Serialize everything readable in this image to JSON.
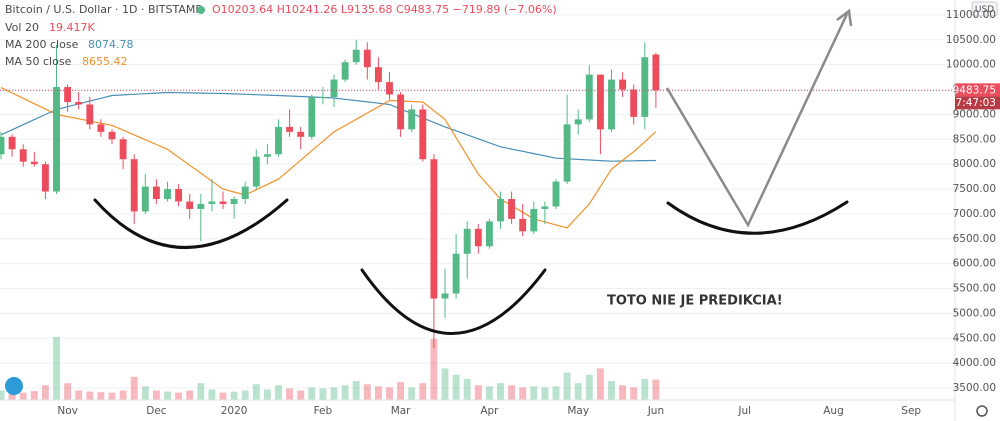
{
  "header": {
    "symbol": "Bitcoin / U.S. Dollar · 1D · BITSTAMP",
    "ohlc": "O10203.64 H10241.26 L9135.68 C9483.75 −719.89 (−7.06%)",
    "countdown": "07:47:03",
    "currency": "USD"
  },
  "chart_data": {
    "type": "candlestick",
    "annotation": "TOTO NIE JE PREDIKCIA!",
    "categories": [
      null,
      null,
      null,
      null,
      null,
      null,
      "Nov",
      null,
      null,
      null,
      null,
      null,
      null,
      null,
      "Dec",
      null,
      null,
      null,
      null,
      null,
      null,
      "2020",
      null,
      null,
      null,
      null,
      null,
      null,
      null,
      "Feb",
      null,
      null,
      null,
      null,
      null,
      null,
      "Mar",
      null,
      null,
      null,
      null,
      null,
      null,
      null,
      "Apr",
      null,
      null,
      null,
      null,
      null,
      null,
      null,
      "May",
      null,
      null,
      null,
      null,
      null,
      null,
      "Jun",
      null,
      null,
      null,
      null,
      null,
      null,
      null,
      "Jul",
      null,
      null,
      null,
      null,
      null,
      null,
      null,
      "Aug",
      null,
      null,
      null,
      null,
      null,
      null,
      "Sep",
      null,
      null,
      null
    ],
    "open": [
      8200,
      8550,
      8300,
      8050,
      8000,
      7450,
      9550,
      9250,
      9200,
      8800,
      8650,
      8500,
      8100,
      7050,
      7550,
      7300,
      7500,
      7250,
      7100,
      7200,
      7250,
      7200,
      7300,
      7550,
      8150,
      8200,
      8750,
      8650,
      8550,
      9350,
      9350,
      9700,
      10050,
      10300,
      9950,
      9650,
      9400,
      8700,
      9100,
      8100,
      5300,
      5400,
      6200,
      6700,
      6350,
      6850,
      7300,
      6900,
      6650,
      7100,
      7150,
      7650,
      8800,
      8900,
      9800,
      8700,
      9700,
      9500,
      8950,
      10203.64,
      null,
      null,
      null,
      null,
      null,
      null,
      null,
      null,
      null,
      null,
      null,
      null,
      null,
      null,
      null,
      null,
      null,
      null,
      null,
      null,
      null,
      null,
      null,
      null,
      null,
      null
    ],
    "high": [
      8650,
      8600,
      8400,
      8250,
      8050,
      10400,
      9600,
      9450,
      9350,
      8900,
      8700,
      8550,
      8200,
      7800,
      7700,
      7650,
      7600,
      7400,
      7400,
      7700,
      7450,
      7350,
      7650,
      8300,
      8400,
      8900,
      9100,
      8750,
      9400,
      9550,
      9800,
      10100,
      10500,
      10450,
      10150,
      9850,
      9450,
      9200,
      9200,
      8200,
      5900,
      6600,
      6850,
      6800,
      6900,
      7450,
      7450,
      7200,
      7250,
      7250,
      7700,
      9400,
      9100,
      10000,
      9800,
      9900,
      9850,
      9600,
      10450,
      10241.26,
      null,
      null,
      null,
      null,
      null,
      null,
      null,
      null,
      null,
      null,
      null,
      null,
      null,
      null,
      null,
      null,
      null,
      null,
      null,
      null,
      null,
      null,
      null,
      null,
      null,
      null
    ],
    "low": [
      8100,
      8150,
      7950,
      7950,
      7300,
      7400,
      9050,
      9100,
      8700,
      8550,
      8400,
      7900,
      6800,
      7000,
      7200,
      7250,
      7150,
      6900,
      6450,
      7050,
      7100,
      6900,
      7200,
      7500,
      8000,
      8150,
      8550,
      8300,
      8500,
      9200,
      9150,
      9650,
      10000,
      9700,
      9500,
      9300,
      8550,
      8650,
      8050,
      4300,
      4900,
      5300,
      5700,
      6200,
      6300,
      6700,
      6800,
      6550,
      6600,
      6800,
      7100,
      7600,
      8600,
      8850,
      8200,
      8650,
      9350,
      8800,
      8700,
      9135.68,
      null,
      null,
      null,
      null,
      null,
      null,
      null,
      null,
      null,
      null,
      null,
      null,
      null,
      null,
      null,
      null,
      null,
      null,
      null,
      null,
      null,
      null,
      null,
      null,
      null,
      null
    ],
    "close": [
      8550,
      8300,
      8050,
      8000,
      7450,
      9550,
      9250,
      9200,
      8800,
      8650,
      8500,
      8100,
      7050,
      7550,
      7300,
      7500,
      7250,
      7100,
      7200,
      7250,
      7200,
      7300,
      7550,
      8150,
      8200,
      8750,
      8650,
      8550,
      9350,
      9350,
      9700,
      10050,
      10300,
      9950,
      9650,
      9400,
      8700,
      9100,
      8100,
      5300,
      5400,
      6200,
      6700,
      6350,
      6850,
      7300,
      6900,
      6650,
      7100,
      7150,
      7650,
      8800,
      8900,
      9800,
      8700,
      9700,
      9500,
      8950,
      10150,
      9483.75,
      null,
      null,
      null,
      null,
      null,
      null,
      null,
      null,
      null,
      null,
      null,
      null,
      null,
      null,
      null,
      null,
      null,
      null,
      null,
      null,
      null,
      null,
      null,
      null,
      null,
      null
    ],
    "up_color": "#53b987",
    "down_color": "#eb4d5c",
    "volume": {
      "name": "Vol 20",
      "last_label": "19.417K",
      "axis": "y2",
      "values": [
        9000,
        8000,
        7000,
        8500,
        14000,
        60000,
        16000,
        9000,
        8000,
        7500,
        7000,
        9000,
        22000,
        13000,
        9000,
        8000,
        7000,
        9000,
        16000,
        10000,
        7000,
        8000,
        9000,
        15000,
        10000,
        14000,
        11000,
        9000,
        12000,
        11000,
        12000,
        14000,
        18000,
        15000,
        13000,
        12000,
        17000,
        12000,
        16000,
        58000,
        30000,
        24000,
        20000,
        14000,
        13000,
        16000,
        14000,
        12000,
        13000,
        12000,
        13000,
        26000,
        16000,
        24000,
        30000,
        18000,
        14000,
        12000,
        20000,
        19417,
        null,
        null,
        null,
        null,
        null,
        null,
        null,
        null,
        null,
        null,
        null,
        null,
        null,
        null,
        null,
        null,
        null,
        null,
        null,
        null,
        null,
        null,
        null,
        null,
        null,
        null
      ]
    },
    "series": [
      {
        "name": "MA 200 close",
        "color": "#4a8fb5",
        "values": [
          8590,
          8692,
          8794,
          8896,
          8998,
          9100,
          9156,
          9212,
          9268,
          9324,
          9380,
          9392,
          9404,
          9416,
          9428,
          9440,
          9436,
          9432,
          9428,
          9424,
          9420,
          9412,
          9404,
          9396,
          9388,
          9380,
          9370,
          9360,
          9350,
          9340,
          9330,
          9304,
          9278,
          9252,
          9226,
          9200,
          9110,
          9020,
          8930,
          8840,
          8750,
          8670,
          8590,
          8510,
          8430,
          8350,
          8304,
          8258,
          8212,
          8166,
          8120,
          8108,
          8096,
          8084,
          8072,
          8060,
          8064,
          8068,
          8071,
          8074.78,
          null,
          null,
          null,
          null,
          null,
          null,
          null,
          null,
          null,
          null,
          null,
          null,
          null,
          null,
          null,
          null,
          null,
          null,
          null,
          null,
          null,
          null,
          null,
          null,
          null,
          null
        ]
      },
      {
        "name": "MA 50 close",
        "color": "#f0922b",
        "values": [
          9540,
          9432,
          9324,
          9216,
          9108,
          9000,
          8956,
          8912,
          8868,
          8824,
          8780,
          8684,
          8588,
          8492,
          8396,
          8300,
          8140,
          7980,
          7820,
          7660,
          7500,
          7440,
          7380,
          7487,
          7593,
          7700,
          7890,
          8080,
          8270,
          8460,
          8650,
          8776,
          8902,
          9028,
          9154,
          9280,
          9270,
          9260,
          9250,
          9075,
          8900,
          8533,
          8167,
          7800,
          7550,
          7300,
          7167,
          7033,
          6900,
          6840,
          6780,
          6720,
          6960,
          7200,
          7550,
          7900,
          8075,
          8250,
          8450,
          8655.42,
          null,
          null,
          null,
          null,
          null,
          null,
          null,
          null,
          null,
          null,
          null,
          null,
          null,
          null,
          null,
          null,
          null,
          null,
          null,
          null,
          null,
          null,
          null,
          null,
          null,
          null
        ]
      }
    ],
    "ylim": [
      3260,
      11300
    ],
    "yticks": [
      {
        "value": 3500,
        "label": "3500.00"
      },
      {
        "value": 4000,
        "label": "4000.00"
      },
      {
        "value": 4500,
        "label": "4500.00"
      },
      {
        "value": 5000,
        "label": "5000.00"
      },
      {
        "value": 5500,
        "label": "5500.00"
      },
      {
        "value": 6000,
        "label": "6000.00"
      },
      {
        "value": 6500,
        "label": "6500.00"
      },
      {
        "value": 7000,
        "label": "7000.00"
      },
      {
        "value": 7500,
        "label": "7500.00"
      },
      {
        "value": 8000,
        "label": "8000.00"
      },
      {
        "value": 8500,
        "label": "8500.00"
      },
      {
        "value": 9000,
        "label": "9000.00"
      },
      {
        "value": 9500,
        "label": "9500.00"
      },
      {
        "value": 10000,
        "label": "10000.00"
      },
      {
        "value": 10500,
        "label": "10500.00"
      },
      {
        "value": 11000,
        "label": "11000.00"
      }
    ],
    "y2lim": [
      0,
      380000
    ],
    "grid": true
  }
}
